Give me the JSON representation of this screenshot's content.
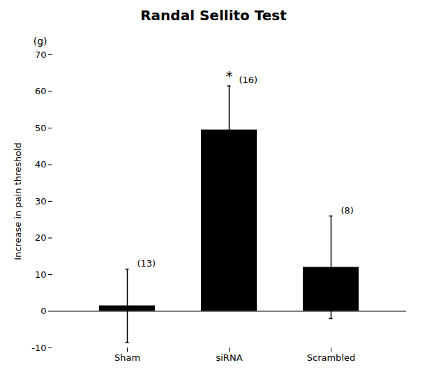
{
  "chart_data": {
    "type": "bar",
    "title": "Randal Sellito Test",
    "ylabel": "Increase in pain threshold",
    "ylabel_unit": "(g)",
    "categories": [
      "Sham",
      "siRNA",
      "Scrambled"
    ],
    "values": [
      1.5,
      49.5,
      12.0
    ],
    "errors": [
      10.0,
      12.0,
      14.0
    ],
    "color": "#000000",
    "ylim": [
      -10,
      70
    ],
    "yticks": [
      -10,
      0,
      10,
      20,
      30,
      40,
      50,
      60,
      70
    ],
    "n_labels": [
      "(13)",
      "(16)",
      "(8)"
    ],
    "significance": [
      {
        "category": "siRNA",
        "label": "*"
      }
    ],
    "grid": false
  }
}
